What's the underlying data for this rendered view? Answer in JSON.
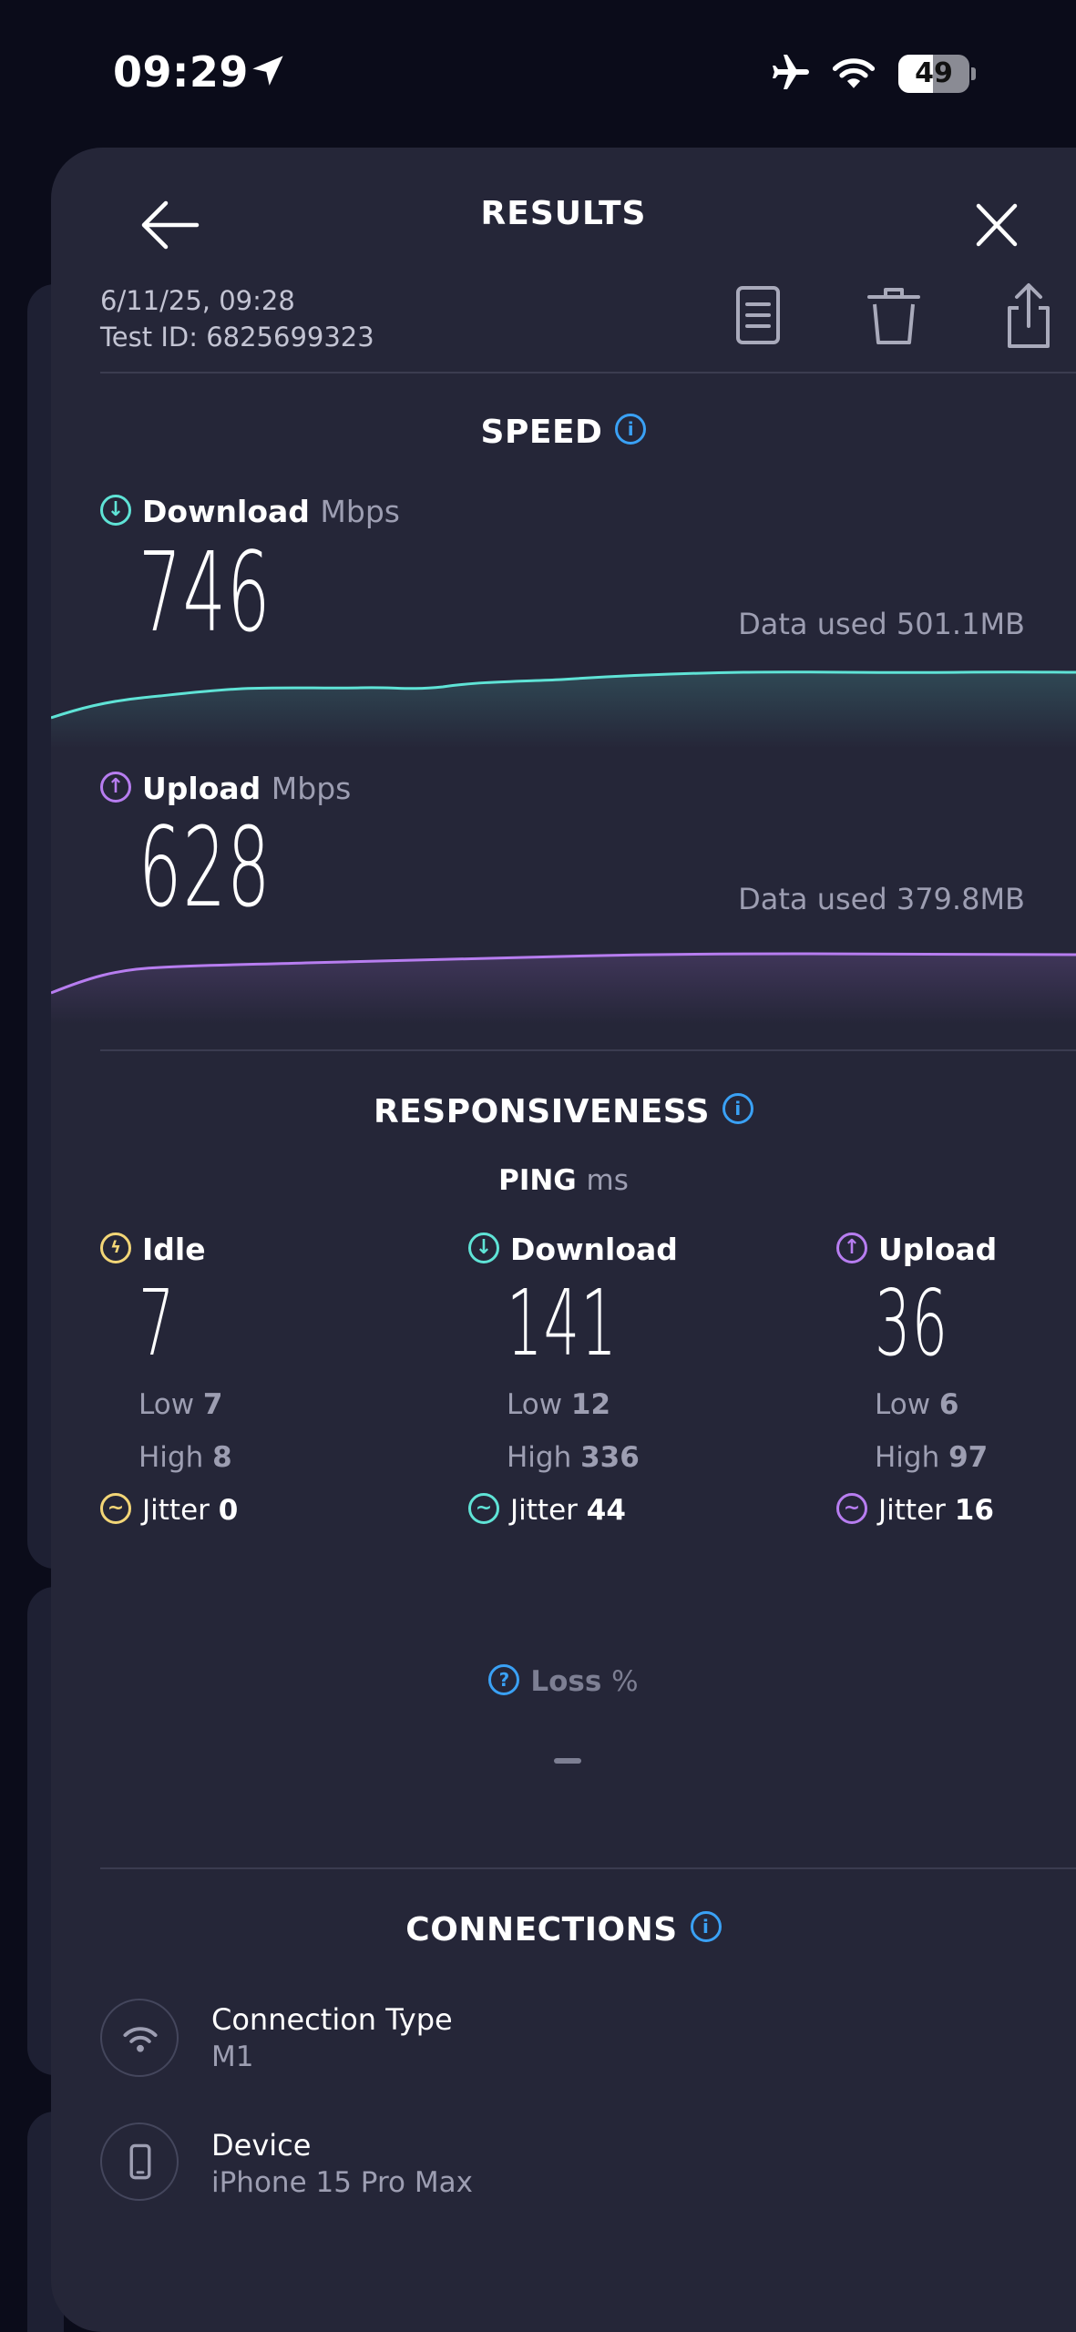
{
  "status_bar": {
    "time": "09:29",
    "battery": "49"
  },
  "header": {
    "title": "RESULTS"
  },
  "meta": {
    "date": "6/11/25, 09:28",
    "test_id": "Test ID: 6825699323"
  },
  "speed": {
    "title": "SPEED",
    "download": {
      "label": "Download",
      "unit": "Mbps",
      "value": "746",
      "data_used": "Data used 501.1MB"
    },
    "upload": {
      "label": "Upload",
      "unit": "Mbps",
      "value": "628",
      "data_used": "Data used 379.8MB"
    }
  },
  "responsiveness": {
    "title": "RESPONSIVENESS",
    "ping_label": "PING",
    "ping_unit": "ms",
    "columns": [
      {
        "label": "Idle",
        "value": "7",
        "low_label": "Low",
        "low": "7",
        "high_label": "High",
        "high": "8",
        "jitter_label": "Jitter",
        "jitter": "0"
      },
      {
        "label": "Download",
        "value": "141",
        "low_label": "Low",
        "low": "12",
        "high_label": "High",
        "high": "336",
        "jitter_label": "Jitter",
        "jitter": "44"
      },
      {
        "label": "Upload",
        "value": "36",
        "low_label": "Low",
        "low": "6",
        "high_label": "High",
        "high": "97",
        "jitter_label": "Jitter",
        "jitter": "16"
      }
    ],
    "loss_label": "Loss",
    "loss_unit": "%",
    "loss_value": "–"
  },
  "connections": {
    "title": "CONNECTIONS",
    "items": [
      {
        "name": "Connection Type",
        "value": "M1",
        "icon": "wifi-icon"
      },
      {
        "name": "Device",
        "value": "iPhone 15 Pro Max",
        "icon": "phone-icon"
      }
    ]
  },
  "colors": {
    "download": "#5fe3d6",
    "upload": "#b77df0",
    "idle": "#f3d677",
    "info": "#3aa1f5"
  }
}
